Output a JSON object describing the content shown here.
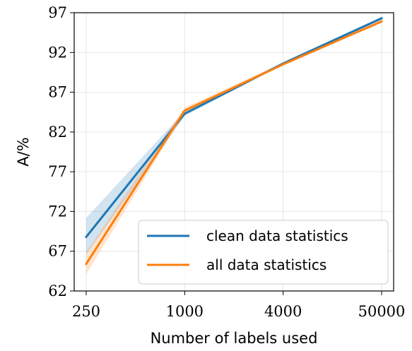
{
  "chart_data": {
    "type": "line",
    "title": "",
    "xlabel": "Number of labels used",
    "ylabel": "A/%",
    "categories": [
      "250",
      "1000",
      "4000",
      "50000"
    ],
    "x_scale": "categorical (log-spaced label counts)",
    "ylim": [
      62,
      97
    ],
    "yticks": [
      "62",
      "67",
      "72",
      "77",
      "82",
      "87",
      "92",
      "97"
    ],
    "grid": true,
    "legend_position": "lower right",
    "series": [
      {
        "name": "clean data statistics",
        "color": "#1f77b4",
        "values": [
          68.8,
          84.3,
          90.6,
          96.3
        ],
        "band_low": [
          66.6,
          84.0,
          90.5,
          96.1
        ],
        "band_high": [
          71.2,
          84.6,
          90.8,
          96.5
        ]
      },
      {
        "name": "all data statistics",
        "color": "#ff7f0e",
        "values": [
          65.4,
          84.7,
          90.5,
          95.9
        ],
        "band_low": [
          64.1,
          84.4,
          90.4,
          95.7
        ],
        "band_high": [
          66.9,
          85.1,
          90.7,
          96.1
        ]
      }
    ]
  }
}
